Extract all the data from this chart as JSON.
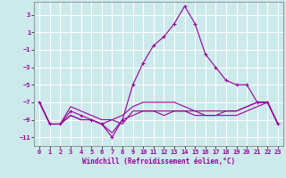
{
  "title": "",
  "xlabel": "Windchill (Refroidissement éolien,°C)",
  "ylabel": "",
  "bg_color": "#cce9eb",
  "line_color": "#990099",
  "grid_color": "#ffffff",
  "xlim": [
    -0.5,
    23.5
  ],
  "ylim": [
    -12,
    4.5
  ],
  "yticks": [
    -11,
    -9,
    -7,
    -5,
    -3,
    -1,
    1,
    3
  ],
  "xticks": [
    0,
    1,
    2,
    3,
    4,
    5,
    6,
    7,
    8,
    9,
    10,
    11,
    12,
    13,
    14,
    15,
    16,
    17,
    18,
    19,
    20,
    21,
    22,
    23
  ],
  "series": [
    {
      "x": [
        0,
        1,
        2,
        3,
        4,
        5,
        6,
        7,
        8,
        9,
        10,
        11,
        12,
        13,
        14,
        15,
        16,
        17,
        18,
        19,
        20,
        21,
        22,
        23
      ],
      "y": [
        -7,
        -9.5,
        -9.5,
        -8,
        -8.5,
        -9,
        -9.5,
        -11,
        -9,
        -5,
        -2.5,
        -0.5,
        0.5,
        2,
        4,
        2,
        -1.5,
        -3,
        -4.5,
        -5,
        -5,
        -7,
        -7,
        -9.5
      ],
      "marker": true
    },
    {
      "x": [
        0,
        1,
        2,
        3,
        4,
        5,
        6,
        7,
        8,
        9,
        10,
        11,
        12,
        13,
        14,
        15,
        16,
        17,
        18,
        19,
        20,
        21,
        22,
        23
      ],
      "y": [
        -7,
        -9.5,
        -9.5,
        -8.5,
        -9,
        -9,
        -9.5,
        -10.5,
        -9,
        -8.5,
        -8,
        -8,
        -8.5,
        -8,
        -8,
        -8.5,
        -8.5,
        -8.5,
        -8.5,
        -8.5,
        -8,
        -7.5,
        -7,
        -9.5
      ],
      "marker": false
    },
    {
      "x": [
        0,
        1,
        2,
        3,
        4,
        5,
        6,
        7,
        8,
        9,
        10,
        11,
        12,
        13,
        14,
        15,
        16,
        17,
        18,
        19,
        20,
        21,
        22,
        23
      ],
      "y": [
        -7,
        -9.5,
        -9.5,
        -7.5,
        -8,
        -8.5,
        -9,
        -9,
        -8.5,
        -7.5,
        -7,
        -7,
        -7,
        -7,
        -7.5,
        -8,
        -8,
        -8,
        -8,
        -8,
        -7.5,
        -7,
        -7,
        -9.5
      ],
      "marker": false
    },
    {
      "x": [
        0,
        1,
        2,
        3,
        4,
        5,
        6,
        7,
        8,
        9,
        10,
        11,
        12,
        13,
        14,
        15,
        16,
        17,
        18,
        19,
        20,
        21,
        22,
        23
      ],
      "y": [
        -7,
        -9.5,
        -9.5,
        -8.5,
        -9,
        -9,
        -9.5,
        -9,
        -9.5,
        -8,
        -8,
        -8,
        -8,
        -8,
        -8,
        -8,
        -8.5,
        -8.5,
        -8,
        -8,
        -7.5,
        -7,
        -7,
        -9.5
      ],
      "marker": false
    }
  ]
}
